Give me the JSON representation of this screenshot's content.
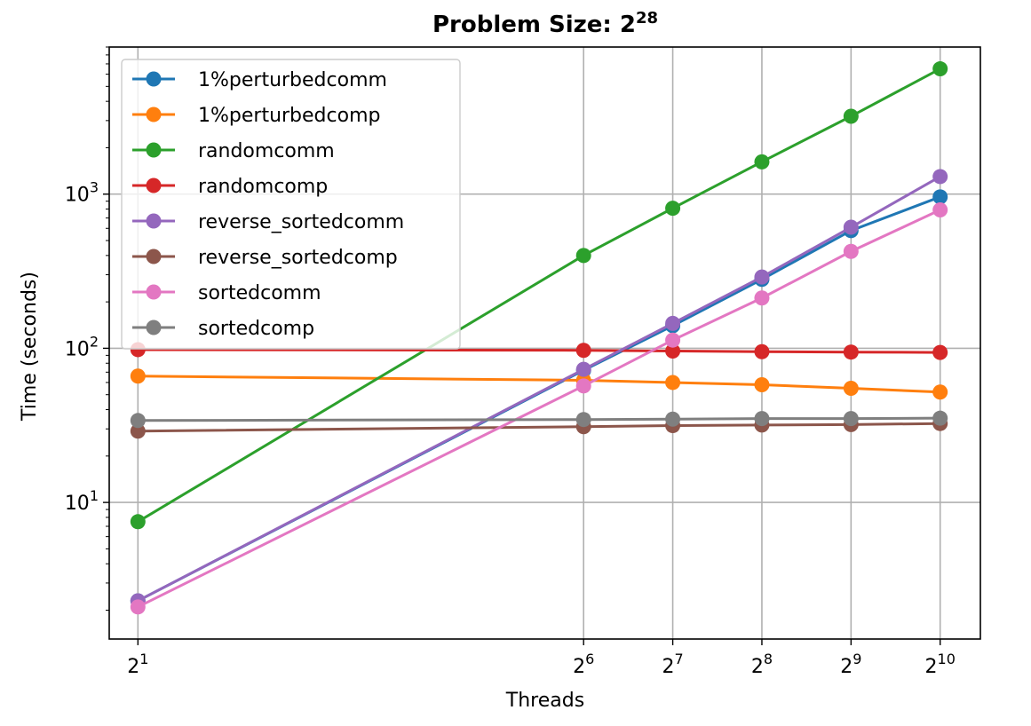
{
  "chart_data": {
    "type": "line",
    "title": "Problem Size: 2",
    "title_superscript": "28",
    "xlabel": "Threads",
    "ylabel": "Time (seconds)",
    "x_scale": "log2",
    "y_scale": "log10",
    "xlim": [
      1.6,
      1400
    ],
    "ylim": [
      1.3,
      9000
    ],
    "x_ticks": [
      {
        "base": "2",
        "exp": "1"
      },
      {
        "base": "2",
        "exp": "6"
      },
      {
        "base": "2",
        "exp": "7"
      },
      {
        "base": "2",
        "exp": "8"
      },
      {
        "base": "2",
        "exp": "9"
      },
      {
        "base": "2",
        "exp": "10"
      }
    ],
    "y_ticks": [
      {
        "base": "10",
        "exp": "1"
      },
      {
        "base": "10",
        "exp": "2"
      },
      {
        "base": "10",
        "exp": "3"
      }
    ],
    "grid": true,
    "legend_position": "top-left",
    "series": [
      {
        "name": "1%perturbedcomm",
        "color": "#1f77b4",
        "x": [
          2,
          64,
          128,
          256,
          512,
          1024
        ],
        "y": [
          2.3,
          72,
          140,
          280,
          580,
          960
        ]
      },
      {
        "name": "1%perturbedcomp",
        "color": "#ff7f0e",
        "x": [
          2,
          64,
          128,
          256,
          512,
          1024
        ],
        "y": [
          66,
          62,
          60,
          58,
          55,
          52
        ]
      },
      {
        "name": "randomcomm",
        "color": "#2ca02c",
        "x": [
          2,
          64,
          128,
          256,
          512,
          1024
        ],
        "y": [
          7.5,
          400,
          810,
          1620,
          3200,
          6500
        ]
      },
      {
        "name": "randomcomp",
        "color": "#d62728",
        "x": [
          2,
          64,
          128,
          256,
          512,
          1024
        ],
        "y": [
          98,
          97,
          96,
          95,
          94.5,
          94
        ]
      },
      {
        "name": "reverse_sortedcomm",
        "color": "#9467bd",
        "x": [
          2,
          64,
          128,
          256,
          512,
          1024
        ],
        "y": [
          2.3,
          73,
          145,
          290,
          610,
          1300
        ]
      },
      {
        "name": "reverse_sortedcomp",
        "color": "#8c564b",
        "x": [
          2,
          64,
          128,
          256,
          512,
          1024
        ],
        "y": [
          29,
          31,
          31.5,
          31.8,
          32,
          32.5
        ]
      },
      {
        "name": "sortedcomm",
        "color": "#e377c2",
        "x": [
          2,
          64,
          128,
          256,
          512,
          1024
        ],
        "y": [
          2.1,
          57,
          113,
          212,
          425,
          790
        ]
      },
      {
        "name": "sortedcomp",
        "color": "#7f7f7f",
        "x": [
          2,
          64,
          128,
          256,
          512,
          1024
        ],
        "y": [
          34,
          34.5,
          34.7,
          35,
          35,
          35.2
        ]
      }
    ]
  }
}
